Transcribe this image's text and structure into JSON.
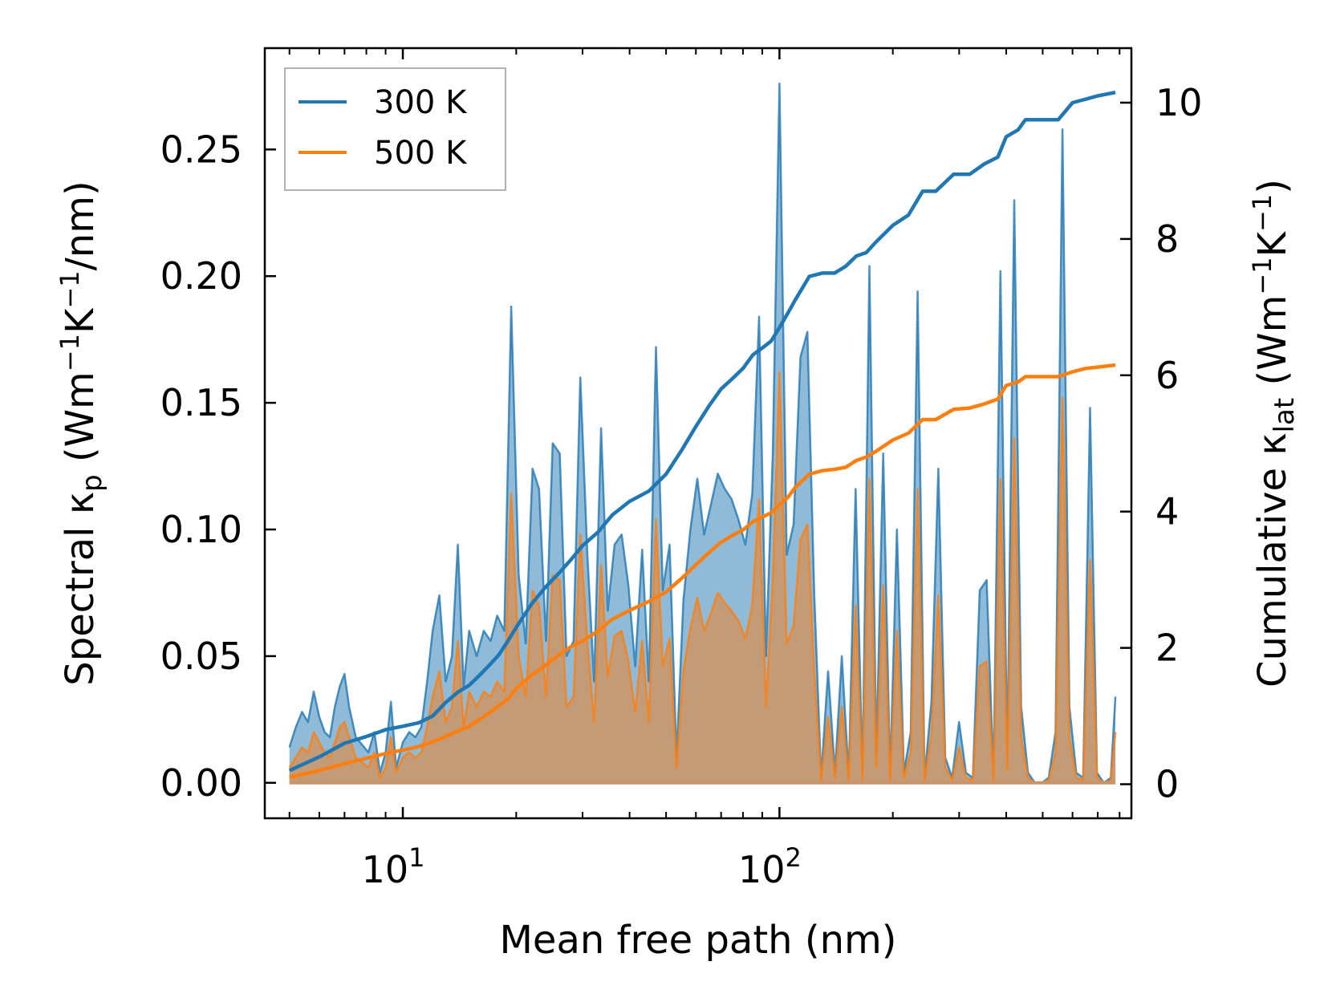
{
  "chart_data": {
    "type": "area+line (dual y-axis)",
    "xscale": "log",
    "xlabel": "Mean free path (nm)",
    "xlim": [
      4.3,
      860
    ],
    "xtick_labels": [
      {
        "value": 10,
        "base": "10",
        "exp": "1"
      },
      {
        "value": 100,
        "base": "10",
        "exp": "2"
      }
    ],
    "ylabel_left": {
      "pre": "Spectral κ",
      "sub": "p",
      "post": " (Wm",
      "sup1": "−1",
      "mid": "K",
      "sup2": "−1",
      "end": "/nm)"
    },
    "ylim_left": [
      -0.014,
      0.29
    ],
    "yticks_left": [
      0.0,
      0.05,
      0.1,
      0.15,
      0.2,
      0.25
    ],
    "ytick_labels_left": [
      "0.00",
      "0.05",
      "0.10",
      "0.15",
      "0.20",
      "0.25"
    ],
    "ylabel_right": {
      "pre": "Cumulative κ",
      "sub": "lat",
      "post": " (Wm",
      "sup1": "−1",
      "mid": "K",
      "sup2": "−1",
      "end": ")"
    },
    "ylim_right": [
      -0.5,
      10.8
    ],
    "yticks_right": [
      0,
      2,
      4,
      6,
      8,
      10
    ],
    "ytick_labels_right": [
      "0",
      "2",
      "4",
      "6",
      "8",
      "10"
    ],
    "legend": {
      "position": "upper-left",
      "entries": [
        "300 K",
        "500 K"
      ]
    },
    "colors": {
      "300 K": "#1f77b4",
      "500 K": "#ff7f0e",
      "fill_300": "#1f77b4",
      "fill_500": "#ff7f0e",
      "overlap": "#c39b77"
    },
    "spectral": {
      "x": [
        5.0,
        5.2,
        5.4,
        5.6,
        5.8,
        6.0,
        6.2,
        6.4,
        6.6,
        6.8,
        7.0,
        7.2,
        7.5,
        7.8,
        8.1,
        8.4,
        8.7,
        9.0,
        9.3,
        9.6,
        10.0,
        10.4,
        10.8,
        11.2,
        11.6,
        12.0,
        12.5,
        13.0,
        13.5,
        14.0,
        14.5,
        15.0,
        15.7,
        16.4,
        17.1,
        17.8,
        18.6,
        19.4,
        20.3,
        21.2,
        22.1,
        23.0,
        24.0,
        25.0,
        26.1,
        27.2,
        28.4,
        29.6,
        30.9,
        32.2,
        33.6,
        35.0,
        36.5,
        38.1,
        39.7,
        41.4,
        43.2,
        45.0,
        47.0,
        49.0,
        51.1,
        53.3,
        55.6,
        58.0,
        60.5,
        63.1,
        65.8,
        68.6,
        71.6,
        74.6,
        77.8,
        81.2,
        84.7,
        88.3,
        92.1,
        96.0,
        100.0,
        104.5,
        109.0,
        113.7,
        118.6,
        123.7,
        129.0,
        134.6,
        140.4,
        146.4,
        152.7,
        159.3,
        166.2,
        173.3,
        180.8,
        188.6,
        196.7,
        205.1,
        214.0,
        223.2,
        232.8,
        242.8,
        253.3,
        264.2,
        275.6,
        287.4,
        299.8,
        312.7,
        326.2,
        340.2,
        354.9,
        370.2,
        386.1,
        402.7,
        420.1,
        438.2,
        457.0,
        476.7,
        497.2,
        518.6,
        541.0,
        564.3,
        588.6,
        614.0,
        640.4,
        668.0,
        696.8,
        726.8,
        758.1,
        780.0
      ],
      "y300": [
        0.014,
        0.022,
        0.028,
        0.024,
        0.036,
        0.026,
        0.02,
        0.018,
        0.03,
        0.038,
        0.043,
        0.03,
        0.018,
        0.015,
        0.012,
        0.02,
        0.004,
        0.012,
        0.032,
        0.006,
        0.016,
        0.02,
        0.018,
        0.022,
        0.04,
        0.06,
        0.074,
        0.04,
        0.05,
        0.094,
        0.038,
        0.06,
        0.05,
        0.06,
        0.056,
        0.066,
        0.06,
        0.188,
        0.082,
        0.055,
        0.124,
        0.116,
        0.056,
        0.134,
        0.13,
        0.05,
        0.056,
        0.16,
        0.09,
        0.04,
        0.14,
        0.068,
        0.094,
        0.098,
        0.078,
        0.046,
        0.092,
        0.04,
        0.172,
        0.076,
        0.094,
        0.01,
        0.072,
        0.1,
        0.12,
        0.098,
        0.11,
        0.122,
        0.116,
        0.112,
        0.104,
        0.094,
        0.114,
        0.184,
        0.05,
        0.13,
        0.276,
        0.09,
        0.102,
        0.168,
        0.178,
        0.075,
        0.002,
        0.044,
        0.004,
        0.05,
        0.002,
        0.116,
        0.002,
        0.204,
        0.01,
        0.13,
        0.002,
        0.1,
        0.004,
        0.02,
        0.194,
        0.002,
        0.032,
        0.124,
        0.01,
        0.002,
        0.024,
        0.004,
        0.002,
        0.076,
        0.08,
        0.002,
        0.202,
        0.008,
        0.23,
        0.03,
        0.004,
        0.0,
        0.0,
        0.002,
        0.02,
        0.258,
        0.03,
        0.004,
        0.002,
        0.148,
        0.004,
        0.0,
        0.002,
        0.034
      ],
      "y500": [
        0.006,
        0.01,
        0.014,
        0.012,
        0.02,
        0.016,
        0.012,
        0.01,
        0.016,
        0.022,
        0.024,
        0.018,
        0.01,
        0.008,
        0.006,
        0.012,
        0.002,
        0.006,
        0.018,
        0.004,
        0.01,
        0.012,
        0.01,
        0.012,
        0.022,
        0.034,
        0.044,
        0.024,
        0.03,
        0.056,
        0.022,
        0.036,
        0.03,
        0.036,
        0.034,
        0.04,
        0.036,
        0.114,
        0.05,
        0.034,
        0.076,
        0.07,
        0.034,
        0.082,
        0.08,
        0.03,
        0.034,
        0.098,
        0.055,
        0.024,
        0.086,
        0.042,
        0.058,
        0.06,
        0.048,
        0.028,
        0.056,
        0.024,
        0.104,
        0.046,
        0.057,
        0.006,
        0.044,
        0.061,
        0.073,
        0.06,
        0.067,
        0.075,
        0.071,
        0.068,
        0.064,
        0.057,
        0.07,
        0.112,
        0.03,
        0.08,
        0.162,
        0.055,
        0.062,
        0.096,
        0.102,
        0.044,
        0.001,
        0.026,
        0.002,
        0.03,
        0.001,
        0.07,
        0.001,
        0.12,
        0.006,
        0.078,
        0.001,
        0.06,
        0.002,
        0.012,
        0.116,
        0.001,
        0.019,
        0.074,
        0.006,
        0.001,
        0.014,
        0.002,
        0.001,
        0.046,
        0.048,
        0.001,
        0.12,
        0.005,
        0.136,
        0.018,
        0.002,
        0.0,
        0.0,
        0.001,
        0.012,
        0.152,
        0.018,
        0.002,
        0.001,
        0.088,
        0.002,
        0.0,
        0.001,
        0.02
      ]
    },
    "cumulative": {
      "x300": [
        5.0,
        6.0,
        7.0,
        8.0,
        9.0,
        10.0,
        11.0,
        12.0,
        13.0,
        14.0,
        15.0,
        16.0,
        17.0,
        18.0,
        19.0,
        20.0,
        22.0,
        24.0,
        26.0,
        28.0,
        30.0,
        33.0,
        36.0,
        40.0,
        45.0,
        50.0,
        55.0,
        60.0,
        65.0,
        70.0,
        75.0,
        80.0,
        85.0,
        90.0,
        95.0,
        100.0,
        105.0,
        110.0,
        120.0,
        130.0,
        140.0,
        150.0,
        160.0,
        170.0,
        180.0,
        200.0,
        220.0,
        240.0,
        260.0,
        290.0,
        320.0,
        350.0,
        380.0,
        400.0,
        430.0,
        450.0,
        500.0,
        550.0,
        600.0,
        650.0,
        700.0,
        780.0
      ],
      "y300": [
        0.2,
        0.4,
        0.6,
        0.7,
        0.8,
        0.85,
        0.9,
        1.0,
        1.2,
        1.35,
        1.45,
        1.6,
        1.75,
        1.9,
        2.1,
        2.3,
        2.65,
        2.9,
        3.1,
        3.3,
        3.5,
        3.7,
        3.95,
        4.15,
        4.3,
        4.55,
        4.9,
        5.25,
        5.55,
        5.8,
        5.95,
        6.1,
        6.3,
        6.4,
        6.5,
        6.7,
        6.9,
        7.1,
        7.45,
        7.5,
        7.5,
        7.6,
        7.75,
        7.8,
        7.95,
        8.2,
        8.35,
        8.7,
        8.7,
        8.95,
        8.95,
        9.1,
        9.2,
        9.5,
        9.6,
        9.75,
        9.75,
        9.75,
        10.0,
        10.05,
        10.1,
        10.15
      ],
      "x500": [
        5.0,
        6.0,
        7.0,
        8.0,
        9.0,
        10.0,
        11.0,
        12.0,
        13.0,
        14.0,
        15.0,
        16.0,
        17.0,
        18.0,
        19.0,
        20.0,
        22.0,
        24.0,
        26.0,
        28.0,
        30.0,
        33.0,
        36.0,
        40.0,
        45.0,
        50.0,
        55.0,
        60.0,
        65.0,
        70.0,
        75.0,
        80.0,
        85.0,
        90.0,
        95.0,
        100.0,
        105.0,
        110.0,
        120.0,
        130.0,
        140.0,
        150.0,
        160.0,
        170.0,
        180.0,
        200.0,
        220.0,
        240.0,
        260.0,
        290.0,
        320.0,
        350.0,
        380.0,
        400.0,
        430.0,
        450.0,
        500.0,
        550.0,
        600.0,
        650.0,
        700.0,
        780.0
      ],
      "y500": [
        0.1,
        0.2,
        0.3,
        0.38,
        0.45,
        0.5,
        0.55,
        0.62,
        0.7,
        0.78,
        0.85,
        0.95,
        1.05,
        1.15,
        1.25,
        1.4,
        1.6,
        1.75,
        1.9,
        2.02,
        2.1,
        2.25,
        2.42,
        2.55,
        2.68,
        2.82,
        3.02,
        3.22,
        3.4,
        3.55,
        3.65,
        3.73,
        3.85,
        3.92,
        3.98,
        4.1,
        4.2,
        4.35,
        4.55,
        4.6,
        4.62,
        4.65,
        4.75,
        4.8,
        4.88,
        5.05,
        5.15,
        5.35,
        5.35,
        5.5,
        5.52,
        5.58,
        5.65,
        5.85,
        5.9,
        5.98,
        5.98,
        5.98,
        6.05,
        6.1,
        6.12,
        6.15
      ]
    }
  }
}
